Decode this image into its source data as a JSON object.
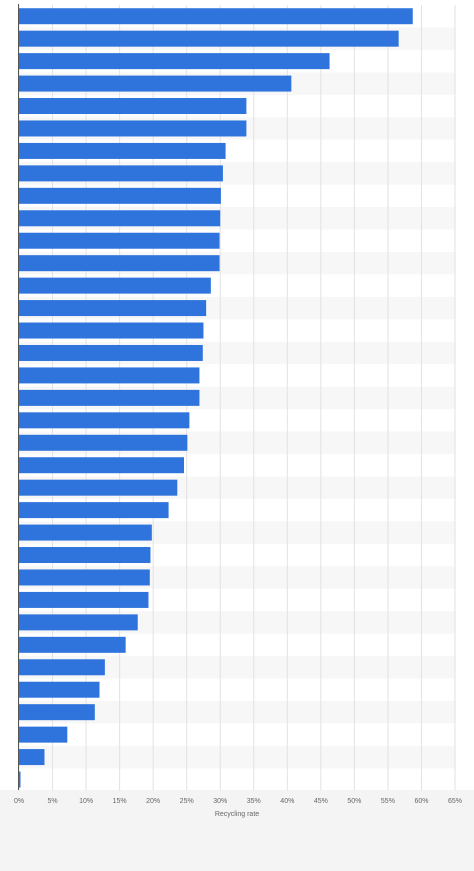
{
  "chart_data": {
    "type": "bar",
    "orientation": "horizontal",
    "title": "",
    "xlabel": "Recycling rate",
    "ylabel": "",
    "categories": [
      "",
      "",
      "",
      "",
      "",
      "",
      "",
      "",
      "",
      "",
      "",
      "",
      "",
      "",
      "",
      "",
      "",
      "",
      "",
      "",
      "",
      "",
      "",
      "",
      "",
      "",
      "",
      "",
      "",
      "",
      "",
      "",
      "",
      "",
      ""
    ],
    "values": [
      58.7,
      56.6,
      46.3,
      40.6,
      33.9,
      33.9,
      30.8,
      30.4,
      30.1,
      30.0,
      29.9,
      29.9,
      28.6,
      27.9,
      27.5,
      27.4,
      26.9,
      26.9,
      25.4,
      25.1,
      24.6,
      23.6,
      22.3,
      19.8,
      19.6,
      19.5,
      19.3,
      17.7,
      15.9,
      12.8,
      12.0,
      11.3,
      7.2,
      3.8,
      0.2
    ],
    "xlim": [
      0,
      65
    ],
    "xticks": [
      "0%",
      "5%",
      "10%",
      "15%",
      "20%",
      "25%",
      "30%",
      "35%",
      "40%",
      "45%",
      "50%",
      "55%",
      "60%",
      "65%"
    ],
    "grid": true,
    "bar_color": "#2e74dc"
  }
}
